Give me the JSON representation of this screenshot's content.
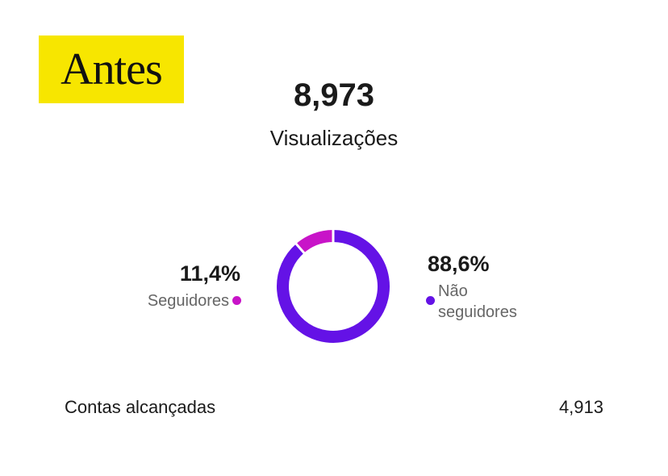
{
  "badge": "Antes",
  "views": {
    "value": "8,973",
    "label": "Visualizações"
  },
  "chart_data": {
    "type": "pie",
    "categories": [
      "Seguidores",
      "Não seguidores"
    ],
    "values": [
      11.4,
      88.6
    ],
    "value_labels": [
      "11,4%",
      "88,6%"
    ],
    "colors": [
      "#c814c8",
      "#6412e6"
    ]
  },
  "reach": {
    "label": "Contas alcançadas",
    "value": "4,913"
  }
}
